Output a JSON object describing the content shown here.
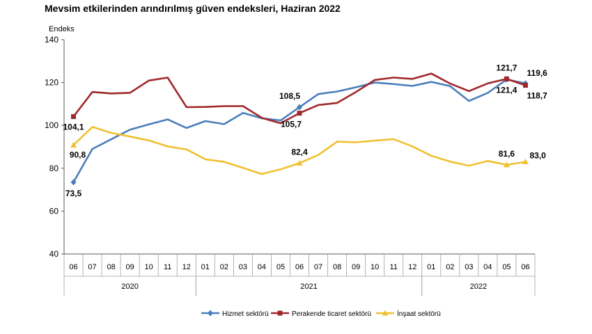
{
  "chart_data": {
    "type": "line",
    "title": "Mevsim etkilerinden arındırılmış güven endeksleri, Haziran 2022",
    "ylabel": "Endeks",
    "ylim": [
      40,
      140
    ],
    "yticks": [
      "40",
      "60",
      "80",
      "100",
      "120",
      "140"
    ],
    "categories": [
      "06",
      "07",
      "08",
      "09",
      "10",
      "11",
      "12",
      "01",
      "02",
      "03",
      "04",
      "05",
      "06",
      "07",
      "08",
      "09",
      "10",
      "11",
      "12",
      "01",
      "02",
      "03",
      "04",
      "05",
      "06"
    ],
    "years": [
      {
        "label": "2020",
        "from": 0,
        "to": 6
      },
      {
        "label": "2021",
        "from": 7,
        "to": 18
      },
      {
        "label": "2022",
        "from": 19,
        "to": 24
      }
    ],
    "grid": false,
    "legend_position": "bottom",
    "series": [
      {
        "name": "Hizmet sektörü",
        "color": "#4a7ebb",
        "marker": "diamond",
        "values": [
          73.5,
          89.0,
          93.5,
          98.0,
          100.5,
          102.8,
          98.8,
          102.0,
          100.6,
          105.8,
          103.3,
          102.3,
          108.5,
          114.6,
          115.8,
          117.8,
          120.0,
          119.3,
          118.4,
          120.3,
          118.3,
          111.4,
          115.2,
          121.4,
          119.6
        ]
      },
      {
        "name": "Perakende ticaret sektörü",
        "color": "#a0282a",
        "marker": "square",
        "values": [
          104.1,
          115.6,
          114.9,
          115.2,
          120.9,
          122.3,
          108.5,
          108.6,
          109.0,
          109.0,
          103.5,
          101.0,
          105.7,
          109.5,
          110.5,
          115.6,
          121.2,
          122.3,
          121.7,
          124.2,
          119.5,
          116.0,
          119.6,
          121.7,
          118.7
        ]
      },
      {
        "name": "İnşaat sektörü",
        "color": "#f0c030",
        "marker": "triangle",
        "values": [
          90.8,
          99.3,
          96.5,
          94.8,
          93.0,
          90.2,
          88.8,
          84.2,
          83.0,
          80.2,
          77.3,
          79.5,
          82.4,
          86.2,
          92.4,
          92.1,
          92.9,
          93.6,
          90.2,
          85.8,
          83.1,
          81.2,
          83.4,
          81.6,
          83.0
        ]
      }
    ],
    "data_labels": [
      {
        "series": 0,
        "index": 0,
        "text": "73,5"
      },
      {
        "series": 1,
        "index": 0,
        "text": "104,1"
      },
      {
        "series": 2,
        "index": 0,
        "text": "90,8"
      },
      {
        "series": 0,
        "index": 12,
        "text": "108,5"
      },
      {
        "series": 1,
        "index": 12,
        "text": "105,7"
      },
      {
        "series": 2,
        "index": 12,
        "text": "82,4"
      },
      {
        "series": 1,
        "index": 23,
        "text": "121,7"
      },
      {
        "series": 0,
        "index": 23,
        "text": "121,4"
      },
      {
        "series": 2,
        "index": 23,
        "text": "81,6"
      },
      {
        "series": 0,
        "index": 24,
        "text": "119,6"
      },
      {
        "series": 1,
        "index": 24,
        "text": "118,7"
      },
      {
        "series": 2,
        "index": 24,
        "text": "83,0"
      }
    ]
  }
}
